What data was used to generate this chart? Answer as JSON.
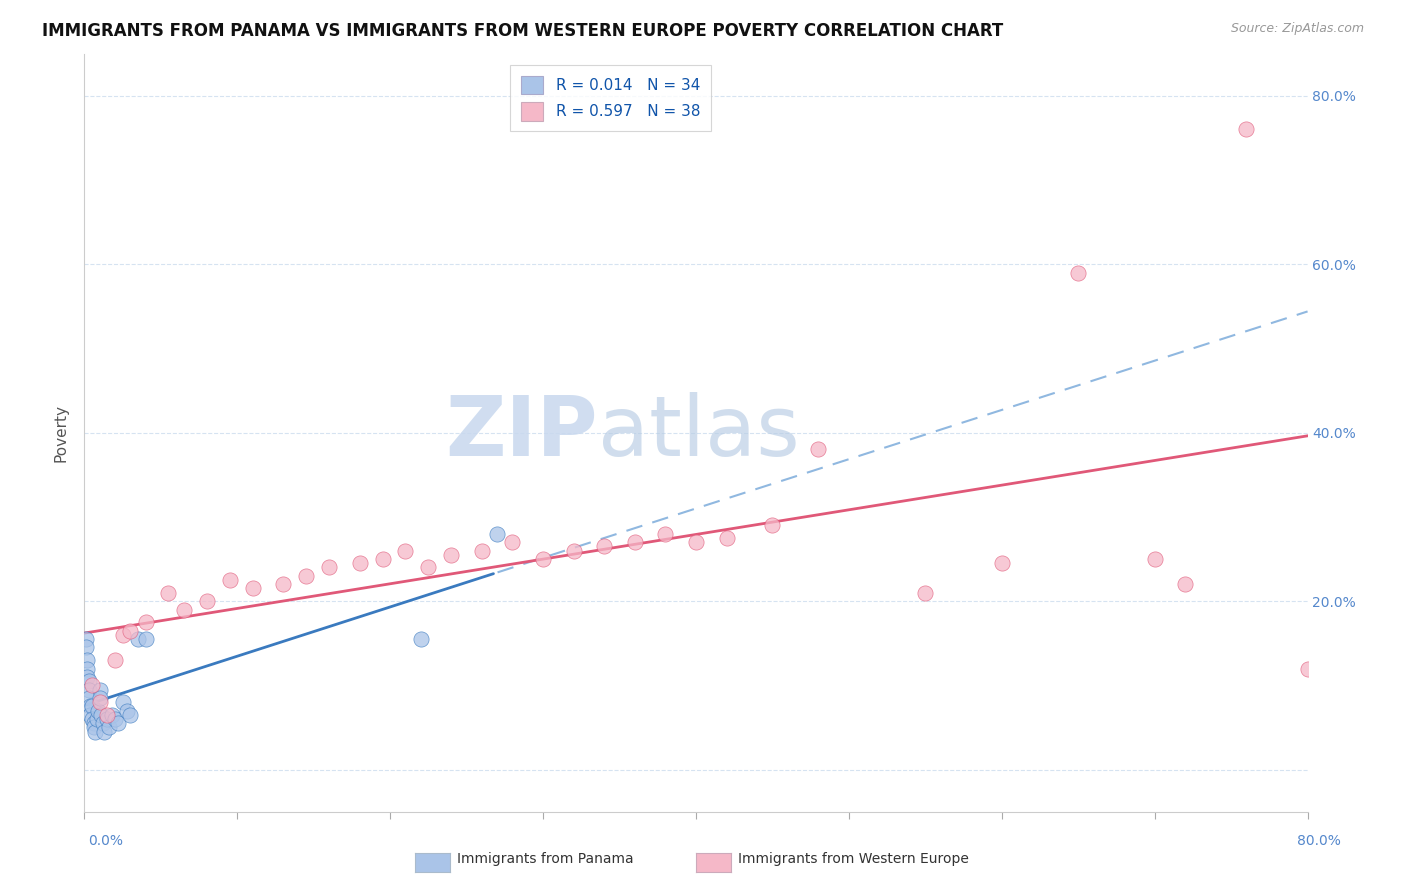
{
  "title": "IMMIGRANTS FROM PANAMA VS IMMIGRANTS FROM WESTERN EUROPE POVERTY CORRELATION CHART",
  "source": "Source: ZipAtlas.com",
  "ylabel": "Poverty",
  "r_panama": 0.014,
  "n_panama": 34,
  "r_western_europe": 0.597,
  "n_western_europe": 38,
  "color_panama": "#aac4e8",
  "color_western_europe": "#f5b8c8",
  "line_color_panama": "#3a7abf",
  "line_color_western_europe": "#e05878",
  "watermark_zip": "ZIP",
  "watermark_atlas": "atlas",
  "xlim": [
    0.0,
    0.8
  ],
  "ylim": [
    -0.05,
    0.85
  ],
  "ytick_values": [
    0.0,
    0.2,
    0.4,
    0.6,
    0.8
  ],
  "background_color": "#ffffff",
  "panama_x": [
    0.001,
    0.001,
    0.002,
    0.002,
    0.002,
    0.003,
    0.003,
    0.003,
    0.004,
    0.004,
    0.005,
    0.005,
    0.006,
    0.006,
    0.007,
    0.008,
    0.009,
    0.01,
    0.01,
    0.011,
    0.012,
    0.013,
    0.015,
    0.016,
    0.018,
    0.02,
    0.022,
    0.025,
    0.028,
    0.03,
    0.035,
    0.04,
    0.22,
    0.27
  ],
  "panama_y": [
    0.155,
    0.145,
    0.13,
    0.12,
    0.11,
    0.105,
    0.095,
    0.085,
    0.075,
    0.065,
    0.075,
    0.06,
    0.055,
    0.05,
    0.045,
    0.06,
    0.07,
    0.095,
    0.085,
    0.065,
    0.055,
    0.045,
    0.06,
    0.05,
    0.065,
    0.06,
    0.055,
    0.08,
    0.07,
    0.065,
    0.155,
    0.155,
    0.155,
    0.28
  ],
  "we_x": [
    0.005,
    0.01,
    0.015,
    0.02,
    0.025,
    0.03,
    0.04,
    0.055,
    0.065,
    0.08,
    0.095,
    0.11,
    0.13,
    0.145,
    0.16,
    0.18,
    0.195,
    0.21,
    0.225,
    0.24,
    0.26,
    0.28,
    0.3,
    0.32,
    0.34,
    0.36,
    0.38,
    0.4,
    0.42,
    0.45,
    0.48,
    0.55,
    0.6,
    0.65,
    0.7,
    0.72,
    0.76,
    0.8
  ],
  "we_y": [
    0.1,
    0.08,
    0.065,
    0.13,
    0.16,
    0.165,
    0.175,
    0.21,
    0.19,
    0.2,
    0.225,
    0.215,
    0.22,
    0.23,
    0.24,
    0.245,
    0.25,
    0.26,
    0.24,
    0.255,
    0.26,
    0.27,
    0.25,
    0.26,
    0.265,
    0.27,
    0.28,
    0.27,
    0.275,
    0.29,
    0.38,
    0.21,
    0.245,
    0.59,
    0.25,
    0.22,
    0.76,
    0.12
  ]
}
